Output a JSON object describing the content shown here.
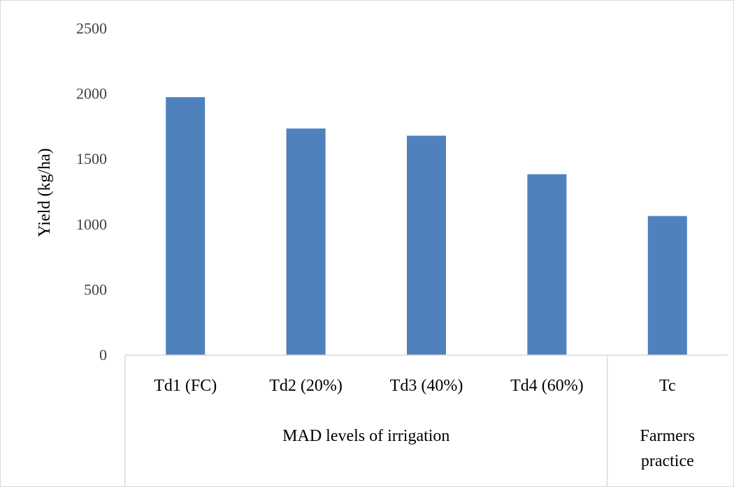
{
  "chart_data": {
    "type": "bar",
    "categories": [
      "Td1 (FC)",
      "Td2 (20%)",
      "Td3 (40%)",
      "Td4 (60%)",
      "Tc"
    ],
    "values": [
      1975,
      1735,
      1680,
      1385,
      1065
    ],
    "groups": [
      {
        "label": "MAD levels of irrigation",
        "categories": [
          "Td1 (FC)",
          "Td2 (20%)",
          "Td3 (40%)",
          "Td4 (60%)"
        ]
      },
      {
        "label": "Farmers practice",
        "label_lines": [
          "Farmers",
          "practice"
        ],
        "categories": [
          "Tc"
        ]
      }
    ],
    "ylabel": "Yield (kg/ha)",
    "ylim": [
      0,
      2500
    ],
    "yticks": [
      "0",
      "500",
      "1000",
      "1500",
      "2000",
      "2500"
    ],
    "grid": false,
    "legend": "none",
    "bar_color": "#4f81bd"
  }
}
